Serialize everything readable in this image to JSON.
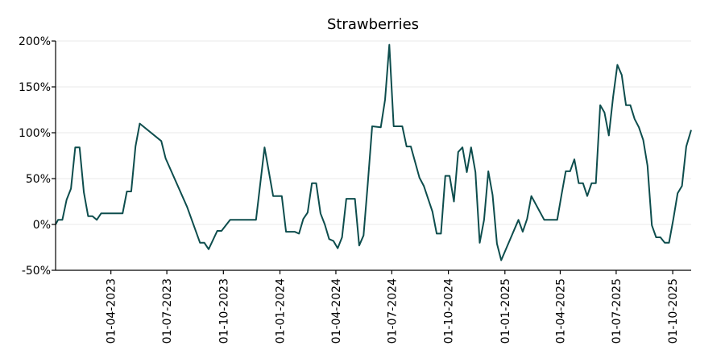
{
  "chart_data": {
    "type": "line",
    "title": "Strawberries",
    "xlabel": "",
    "ylabel": "",
    "y_unit": "%",
    "ylim": [
      -50,
      200
    ],
    "xlim": [
      "2023-01-01",
      "2025-10-31"
    ],
    "grid": "horizontal",
    "legend": "none",
    "y_ticks": [
      -50,
      0,
      50,
      100,
      150,
      200
    ],
    "x_ticks": [
      "2023-04-01",
      "2023-07-01",
      "2023-10-01",
      "2024-01-01",
      "2024-04-01",
      "2024-07-01",
      "2024-10-01",
      "2025-01-01",
      "2025-04-01",
      "2025-07-01",
      "2025-10-01"
    ],
    "x_tick_labels": [
      "01-04-2023",
      "01-07-2023",
      "01-10-2023",
      "01-01-2024",
      "01-04-2024",
      "01-07-2024",
      "01-10-2024",
      "01-01-2025",
      "01-04-2025",
      "01-07-2025",
      "01-10-2025"
    ],
    "y_tick_labels": [
      "-50%",
      "0%",
      "50%",
      "100%",
      "150%",
      "200%"
    ],
    "series": [
      {
        "name": "",
        "color": "#0d4d4d",
        "points": [
          [
            "2023-01-01",
            0
          ],
          [
            "2023-01-05",
            5
          ],
          [
            "2023-01-12",
            5
          ],
          [
            "2023-01-19",
            27
          ],
          [
            "2023-01-26",
            39
          ],
          [
            "2023-02-02",
            84
          ],
          [
            "2023-02-09",
            84
          ],
          [
            "2023-02-16",
            35
          ],
          [
            "2023-02-23",
            9
          ],
          [
            "2023-03-02",
            9
          ],
          [
            "2023-03-09",
            5
          ],
          [
            "2023-03-16",
            12
          ],
          [
            "2023-03-23",
            12
          ],
          [
            "2023-03-30",
            12
          ],
          [
            "2023-04-06",
            12
          ],
          [
            "2023-04-13",
            12
          ],
          [
            "2023-04-20",
            12
          ],
          [
            "2023-04-27",
            36
          ],
          [
            "2023-05-04",
            36
          ],
          [
            "2023-05-11",
            85
          ],
          [
            "2023-05-18",
            110
          ],
          [
            "2023-06-22",
            91
          ],
          [
            "2023-06-29",
            72
          ],
          [
            "2023-08-03",
            19
          ],
          [
            "2023-08-24",
            -20
          ],
          [
            "2023-08-31",
            -20
          ],
          [
            "2023-09-07",
            -27
          ],
          [
            "2023-09-21",
            -7
          ],
          [
            "2023-09-28",
            -7
          ],
          [
            "2023-10-12",
            5
          ],
          [
            "2023-11-23",
            5
          ],
          [
            "2023-12-07",
            84
          ],
          [
            "2023-12-21",
            31
          ],
          [
            "2024-01-04",
            31
          ],
          [
            "2024-01-11",
            -8
          ],
          [
            "2024-01-25",
            -8
          ],
          [
            "2024-02-01",
            -10
          ],
          [
            "2024-02-08",
            6
          ],
          [
            "2024-02-15",
            13
          ],
          [
            "2024-02-22",
            45
          ],
          [
            "2024-02-29",
            45
          ],
          [
            "2024-03-07",
            12
          ],
          [
            "2024-03-14",
            0
          ],
          [
            "2024-03-21",
            -16
          ],
          [
            "2024-03-28",
            -18
          ],
          [
            "2024-04-04",
            -26
          ],
          [
            "2024-04-11",
            -14
          ],
          [
            "2024-04-18",
            28
          ],
          [
            "2024-05-02",
            28
          ],
          [
            "2024-05-09",
            -23
          ],
          [
            "2024-05-16",
            -12
          ],
          [
            "2024-05-23",
            45
          ],
          [
            "2024-05-30",
            107
          ],
          [
            "2024-06-13",
            106
          ],
          [
            "2024-06-20",
            136
          ],
          [
            "2024-06-27",
            196
          ],
          [
            "2024-07-04",
            107
          ],
          [
            "2024-07-18",
            107
          ],
          [
            "2024-07-25",
            85
          ],
          [
            "2024-08-01",
            85
          ],
          [
            "2024-08-15",
            51
          ],
          [
            "2024-08-22",
            42
          ],
          [
            "2024-09-05",
            14
          ],
          [
            "2024-09-12",
            -10
          ],
          [
            "2024-09-19",
            -10
          ],
          [
            "2024-09-26",
            53
          ],
          [
            "2024-10-03",
            53
          ],
          [
            "2024-10-10",
            25
          ],
          [
            "2024-10-17",
            79
          ],
          [
            "2024-10-24",
            84
          ],
          [
            "2024-10-31",
            57
          ],
          [
            "2024-11-07",
            84
          ],
          [
            "2024-11-14",
            57
          ],
          [
            "2024-11-21",
            -20
          ],
          [
            "2024-11-28",
            5
          ],
          [
            "2024-12-05",
            58
          ],
          [
            "2024-12-12",
            32
          ],
          [
            "2024-12-19",
            -21
          ],
          [
            "2024-12-26",
            -39
          ],
          [
            "2025-01-23",
            5
          ],
          [
            "2025-01-30",
            -8
          ],
          [
            "2025-02-06",
            6
          ],
          [
            "2025-02-13",
            31
          ],
          [
            "2025-03-06",
            5
          ],
          [
            "2025-03-27",
            5
          ],
          [
            "2025-04-03",
            32
          ],
          [
            "2025-04-10",
            58
          ],
          [
            "2025-04-17",
            58
          ],
          [
            "2025-04-24",
            71
          ],
          [
            "2025-05-01",
            45
          ],
          [
            "2025-05-08",
            45
          ],
          [
            "2025-05-15",
            31
          ],
          [
            "2025-05-22",
            45
          ],
          [
            "2025-05-29",
            45
          ],
          [
            "2025-06-05",
            130
          ],
          [
            "2025-06-12",
            122
          ],
          [
            "2025-06-19",
            97
          ],
          [
            "2025-06-26",
            139
          ],
          [
            "2025-07-03",
            174
          ],
          [
            "2025-07-10",
            163
          ],
          [
            "2025-07-17",
            130
          ],
          [
            "2025-07-24",
            130
          ],
          [
            "2025-07-31",
            115
          ],
          [
            "2025-08-07",
            106
          ],
          [
            "2025-08-14",
            92
          ],
          [
            "2025-08-21",
            64
          ],
          [
            "2025-08-28",
            -1
          ],
          [
            "2025-09-04",
            -14
          ],
          [
            "2025-09-11",
            -14
          ],
          [
            "2025-09-18",
            -20
          ],
          [
            "2025-09-25",
            -20
          ],
          [
            "2025-10-02",
            6
          ],
          [
            "2025-10-09",
            34
          ],
          [
            "2025-10-16",
            42
          ],
          [
            "2025-10-23",
            85
          ],
          [
            "2025-10-31",
            103
          ]
        ]
      }
    ]
  }
}
